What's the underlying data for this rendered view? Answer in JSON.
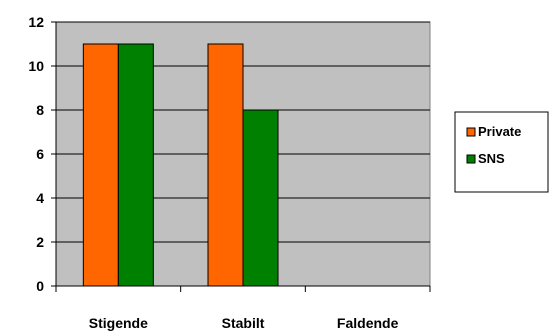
{
  "chart_data": {
    "type": "bar",
    "title": "",
    "xlabel": "",
    "ylabel": "",
    "categories": [
      "Stigende",
      "Stabilt",
      "Faldende"
    ],
    "series": [
      {
        "name": "Private",
        "values": [
          11,
          11,
          0
        ],
        "color": "#ff6600"
      },
      {
        "name": "SNS",
        "values": [
          11,
          8,
          0
        ],
        "color": "#008000"
      }
    ],
    "ylim": [
      0,
      12
    ],
    "yticks": [
      0,
      2,
      4,
      6,
      8,
      10,
      12
    ],
    "grid": true,
    "legend_position": "right",
    "plot_background": "#c0c0c0"
  }
}
